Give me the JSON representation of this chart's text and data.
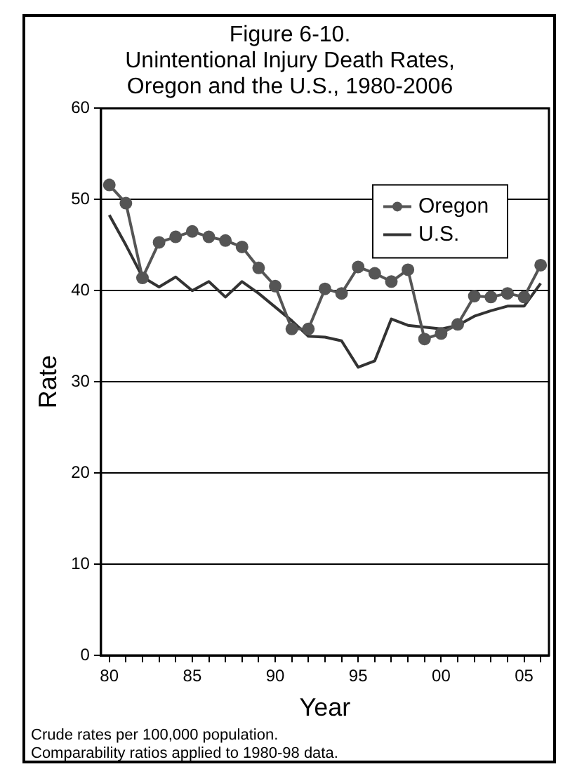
{
  "chart_data": {
    "type": "line",
    "title": "Figure 6-10.\nUnintentional Injury Death Rates,\nOregon and the U.S., 1980-2006",
    "xlabel": "Year",
    "ylabel": "Rate",
    "x": [
      1980,
      1981,
      1982,
      1983,
      1984,
      1985,
      1986,
      1987,
      1988,
      1989,
      1990,
      1991,
      1992,
      1993,
      1994,
      1995,
      1996,
      1997,
      1998,
      1999,
      2000,
      2001,
      2002,
      2003,
      2004,
      2005,
      2006
    ],
    "series": [
      {
        "name": "Oregon",
        "color": "#555555",
        "marker": "circle",
        "values": [
          51.6,
          49.6,
          41.4,
          45.3,
          45.9,
          46.5,
          45.9,
          45.5,
          44.8,
          42.5,
          40.5,
          35.8,
          35.8,
          40.2,
          39.7,
          42.6,
          41.9,
          41.0,
          42.3,
          34.7,
          35.3,
          36.3,
          39.4,
          39.3,
          39.7,
          39.3,
          42.8
        ]
      },
      {
        "name": "U.S.",
        "color": "#333333",
        "marker": "none",
        "values": [
          48.3,
          45.0,
          41.5,
          40.4,
          41.5,
          40.0,
          41.0,
          39.3,
          41.0,
          39.7,
          38.2,
          36.7,
          35.0,
          34.9,
          34.5,
          31.6,
          32.3,
          36.9,
          36.2,
          36.0,
          35.8,
          36.2,
          37.2,
          37.8,
          38.3,
          38.3,
          40.8
        ]
      }
    ],
    "xlim": [
      1979.5,
      2006.5
    ],
    "xticks": [
      {
        "value": 1980,
        "label": "80"
      },
      {
        "value": 1981,
        "label": null
      },
      {
        "value": 1982,
        "label": null
      },
      {
        "value": 1983,
        "label": null
      },
      {
        "value": 1984,
        "label": null
      },
      {
        "value": 1985,
        "label": "85"
      },
      {
        "value": 1986,
        "label": null
      },
      {
        "value": 1987,
        "label": null
      },
      {
        "value": 1988,
        "label": null
      },
      {
        "value": 1989,
        "label": null
      },
      {
        "value": 1990,
        "label": "90"
      },
      {
        "value": 1991,
        "label": null
      },
      {
        "value": 1992,
        "label": null
      },
      {
        "value": 1993,
        "label": null
      },
      {
        "value": 1994,
        "label": null
      },
      {
        "value": 1995,
        "label": "95"
      },
      {
        "value": 1996,
        "label": null
      },
      {
        "value": 1997,
        "label": null
      },
      {
        "value": 1998,
        "label": null
      },
      {
        "value": 1999,
        "label": null
      },
      {
        "value": 2000,
        "label": "00"
      },
      {
        "value": 2001,
        "label": null
      },
      {
        "value": 2002,
        "label": null
      },
      {
        "value": 2003,
        "label": null
      },
      {
        "value": 2004,
        "label": null
      },
      {
        "value": 2005,
        "label": "05"
      },
      {
        "value": 2006,
        "label": null
      }
    ],
    "ylim": [
      0,
      60
    ],
    "yticks": [
      0,
      10,
      20,
      30,
      40,
      50,
      60
    ],
    "grid": "y",
    "legend": "top right",
    "line_style": "solid",
    "annotations": [
      "Crude rates per 100,000 population.",
      "Comparability ratios applied to 1980-98 data."
    ]
  }
}
